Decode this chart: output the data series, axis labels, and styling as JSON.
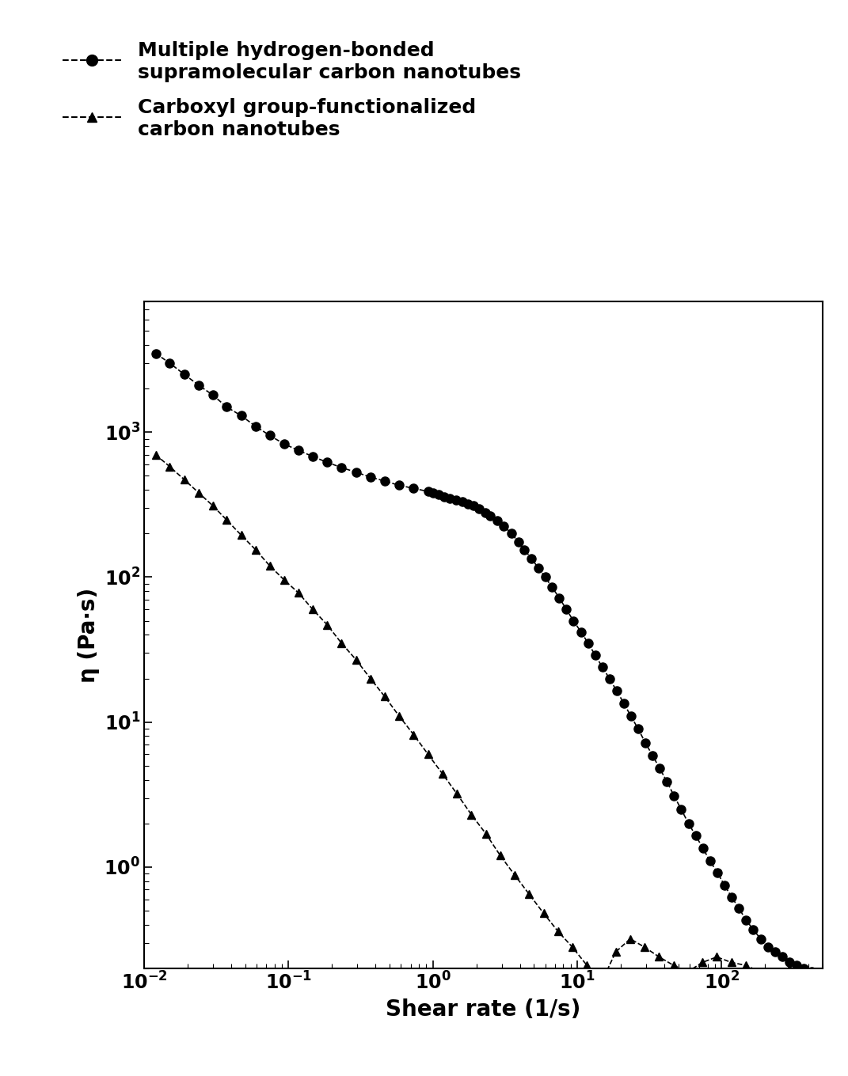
{
  "xlabel": "Shear rate (1/s)",
  "ylabel": "η (Pa·s)",
  "xlim": [
    0.01,
    500
  ],
  "ylim": [
    0.2,
    8000
  ],
  "legend_labels": [
    "Multiple hydrogen-bonded\nsupramolecular carbon nanotubes",
    "Carboxyl group-functionalized\ncarbon nanotubes"
  ],
  "series1_x": [
    0.012,
    0.015,
    0.019,
    0.024,
    0.03,
    0.037,
    0.047,
    0.059,
    0.074,
    0.093,
    0.117,
    0.147,
    0.185,
    0.233,
    0.293,
    0.369,
    0.464,
    0.584,
    0.735,
    0.925,
    1.0,
    1.1,
    1.2,
    1.3,
    1.45,
    1.6,
    1.75,
    1.9,
    2.1,
    2.3,
    2.5,
    2.8,
    3.1,
    3.5,
    3.9,
    4.3,
    4.8,
    5.4,
    6.0,
    6.7,
    7.5,
    8.4,
    9.4,
    10.6,
    11.9,
    13.3,
    14.9,
    16.7,
    18.7,
    21.0,
    23.5,
    26.4,
    29.6,
    33.2,
    37.2,
    41.7,
    46.8,
    52.5,
    58.9,
    66.1,
    74.1,
    83.1,
    93.2,
    104.6,
    117.4,
    131.7,
    147.7,
    165.8,
    186.0,
    208.8,
    234.4,
    263.0,
    295.2,
    331.3,
    371.8,
    417.1
  ],
  "series1_y": [
    3500,
    3000,
    2500,
    2100,
    1800,
    1500,
    1300,
    1100,
    950,
    830,
    750,
    680,
    620,
    570,
    530,
    490,
    460,
    430,
    410,
    390,
    380,
    370,
    360,
    350,
    340,
    330,
    320,
    310,
    295,
    280,
    265,
    245,
    225,
    200,
    175,
    155,
    135,
    115,
    100,
    85,
    72,
    60,
    50,
    42,
    35,
    29,
    24,
    20,
    16.5,
    13.5,
    11.0,
    9.0,
    7.2,
    5.9,
    4.8,
    3.9,
    3.1,
    2.5,
    2.0,
    1.65,
    1.35,
    1.1,
    0.92,
    0.75,
    0.62,
    0.52,
    0.43,
    0.37,
    0.32,
    0.28,
    0.26,
    0.24,
    0.22,
    0.21,
    0.2,
    0.19
  ],
  "series2_x": [
    0.012,
    0.015,
    0.019,
    0.024,
    0.03,
    0.037,
    0.047,
    0.059,
    0.074,
    0.093,
    0.117,
    0.147,
    0.185,
    0.233,
    0.293,
    0.369,
    0.464,
    0.584,
    0.735,
    0.925,
    1.165,
    1.467,
    1.847,
    2.326,
    2.929,
    3.688,
    4.642,
    5.844,
    7.357,
    9.262,
    11.66,
    14.68,
    18.48,
    23.27,
    29.29,
    36.88,
    46.42,
    58.44,
    73.57,
    92.62,
    116.6,
    146.8,
    184.8,
    232.7,
    292.9,
    368.8
  ],
  "series2_y": [
    700,
    580,
    470,
    380,
    310,
    250,
    195,
    155,
    120,
    96,
    78,
    60,
    47,
    35,
    27,
    20,
    15,
    11,
    8.2,
    6.0,
    4.4,
    3.2,
    2.3,
    1.7,
    1.2,
    0.88,
    0.65,
    0.48,
    0.36,
    0.28,
    0.21,
    0.16,
    0.26,
    0.32,
    0.28,
    0.24,
    0.21,
    0.19,
    0.22,
    0.24,
    0.22,
    0.21,
    0.19,
    0.18,
    0.2,
    0.19
  ],
  "background_color": "#ffffff",
  "line_color": "#000000",
  "marker_color": "#000000",
  "marker_size1": 8,
  "marker_size2": 7,
  "linewidth": 1.2,
  "xlabel_fontsize": 20,
  "ylabel_fontsize": 20,
  "tick_fontsize": 17,
  "legend_fontsize": 18
}
